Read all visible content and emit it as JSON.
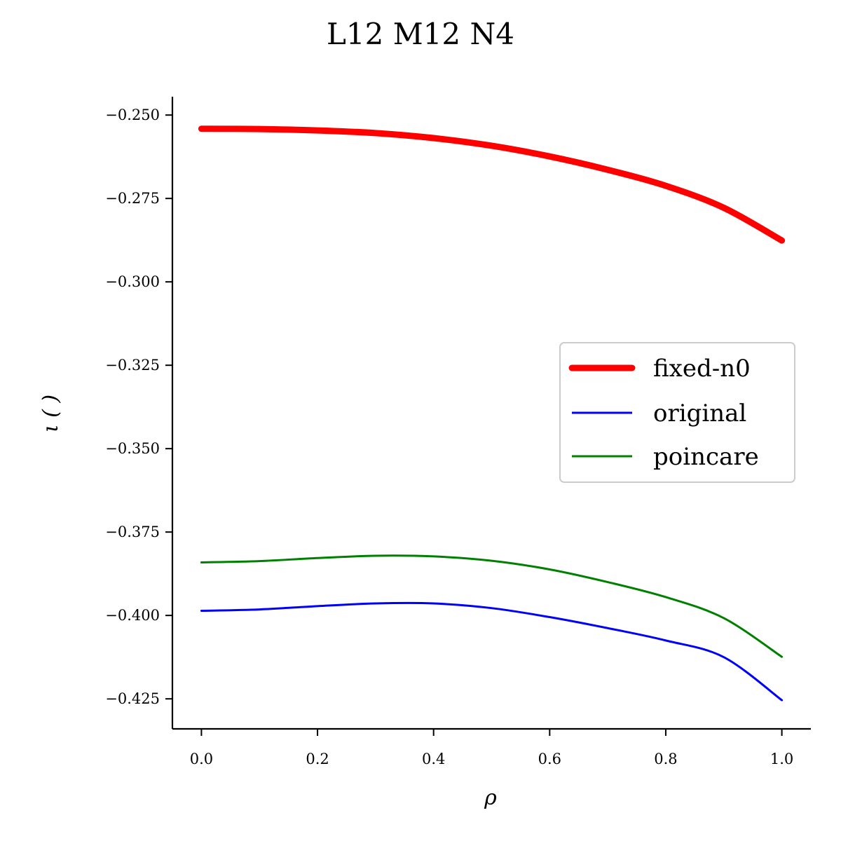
{
  "chart_data": {
    "type": "line",
    "title": "L12 M12 N4",
    "xlabel": "ρ",
    "ylabel": "ι ( )",
    "xlim": [
      -0.05,
      1.05
    ],
    "ylim": [
      -0.434,
      -0.2445
    ],
    "x_ticks": [
      0.0,
      0.2,
      0.4,
      0.6,
      0.8,
      1.0
    ],
    "x_tick_labels": [
      "0.0",
      "0.2",
      "0.4",
      "0.6",
      "0.8",
      "1.0"
    ],
    "y_ticks": [
      -0.25,
      -0.275,
      -0.3,
      -0.325,
      -0.35,
      -0.375,
      -0.4,
      -0.425
    ],
    "y_tick_labels": [
      "−0.250",
      "−0.275",
      "−0.300",
      "−0.325",
      "−0.350",
      "−0.375",
      "−0.400",
      "−0.425"
    ],
    "grid": false,
    "legend_position": "center-right",
    "series": [
      {
        "name": "fixed-n0",
        "color": "#ff0000",
        "x": [
          0.0,
          0.1,
          0.2,
          0.3,
          0.4,
          0.5,
          0.6,
          0.7,
          0.8,
          0.9,
          1.0
        ],
        "y": [
          -0.2541,
          -0.2542,
          -0.2546,
          -0.2554,
          -0.2569,
          -0.2592,
          -0.2624,
          -0.2664,
          -0.2712,
          -0.2778,
          -0.2876
        ]
      },
      {
        "name": "original",
        "color": "#0000ff",
        "x": [
          0.0,
          0.1,
          0.2,
          0.3,
          0.4,
          0.5,
          0.6,
          0.7,
          0.8,
          0.9,
          1.0
        ],
        "y": [
          -0.3986,
          -0.3982,
          -0.3972,
          -0.3964,
          -0.3964,
          -0.3978,
          -0.4005,
          -0.4038,
          -0.4075,
          -0.4125,
          -0.4254
        ]
      },
      {
        "name": "poincare",
        "color": "#008000",
        "x": [
          0.0,
          0.1,
          0.2,
          0.3,
          0.4,
          0.5,
          0.6,
          0.7,
          0.8,
          0.9,
          1.0
        ],
        "y": [
          -0.3841,
          -0.3837,
          -0.3828,
          -0.3821,
          -0.3823,
          -0.3836,
          -0.3862,
          -0.39,
          -0.3945,
          -0.4008,
          -0.4124
        ]
      }
    ]
  }
}
